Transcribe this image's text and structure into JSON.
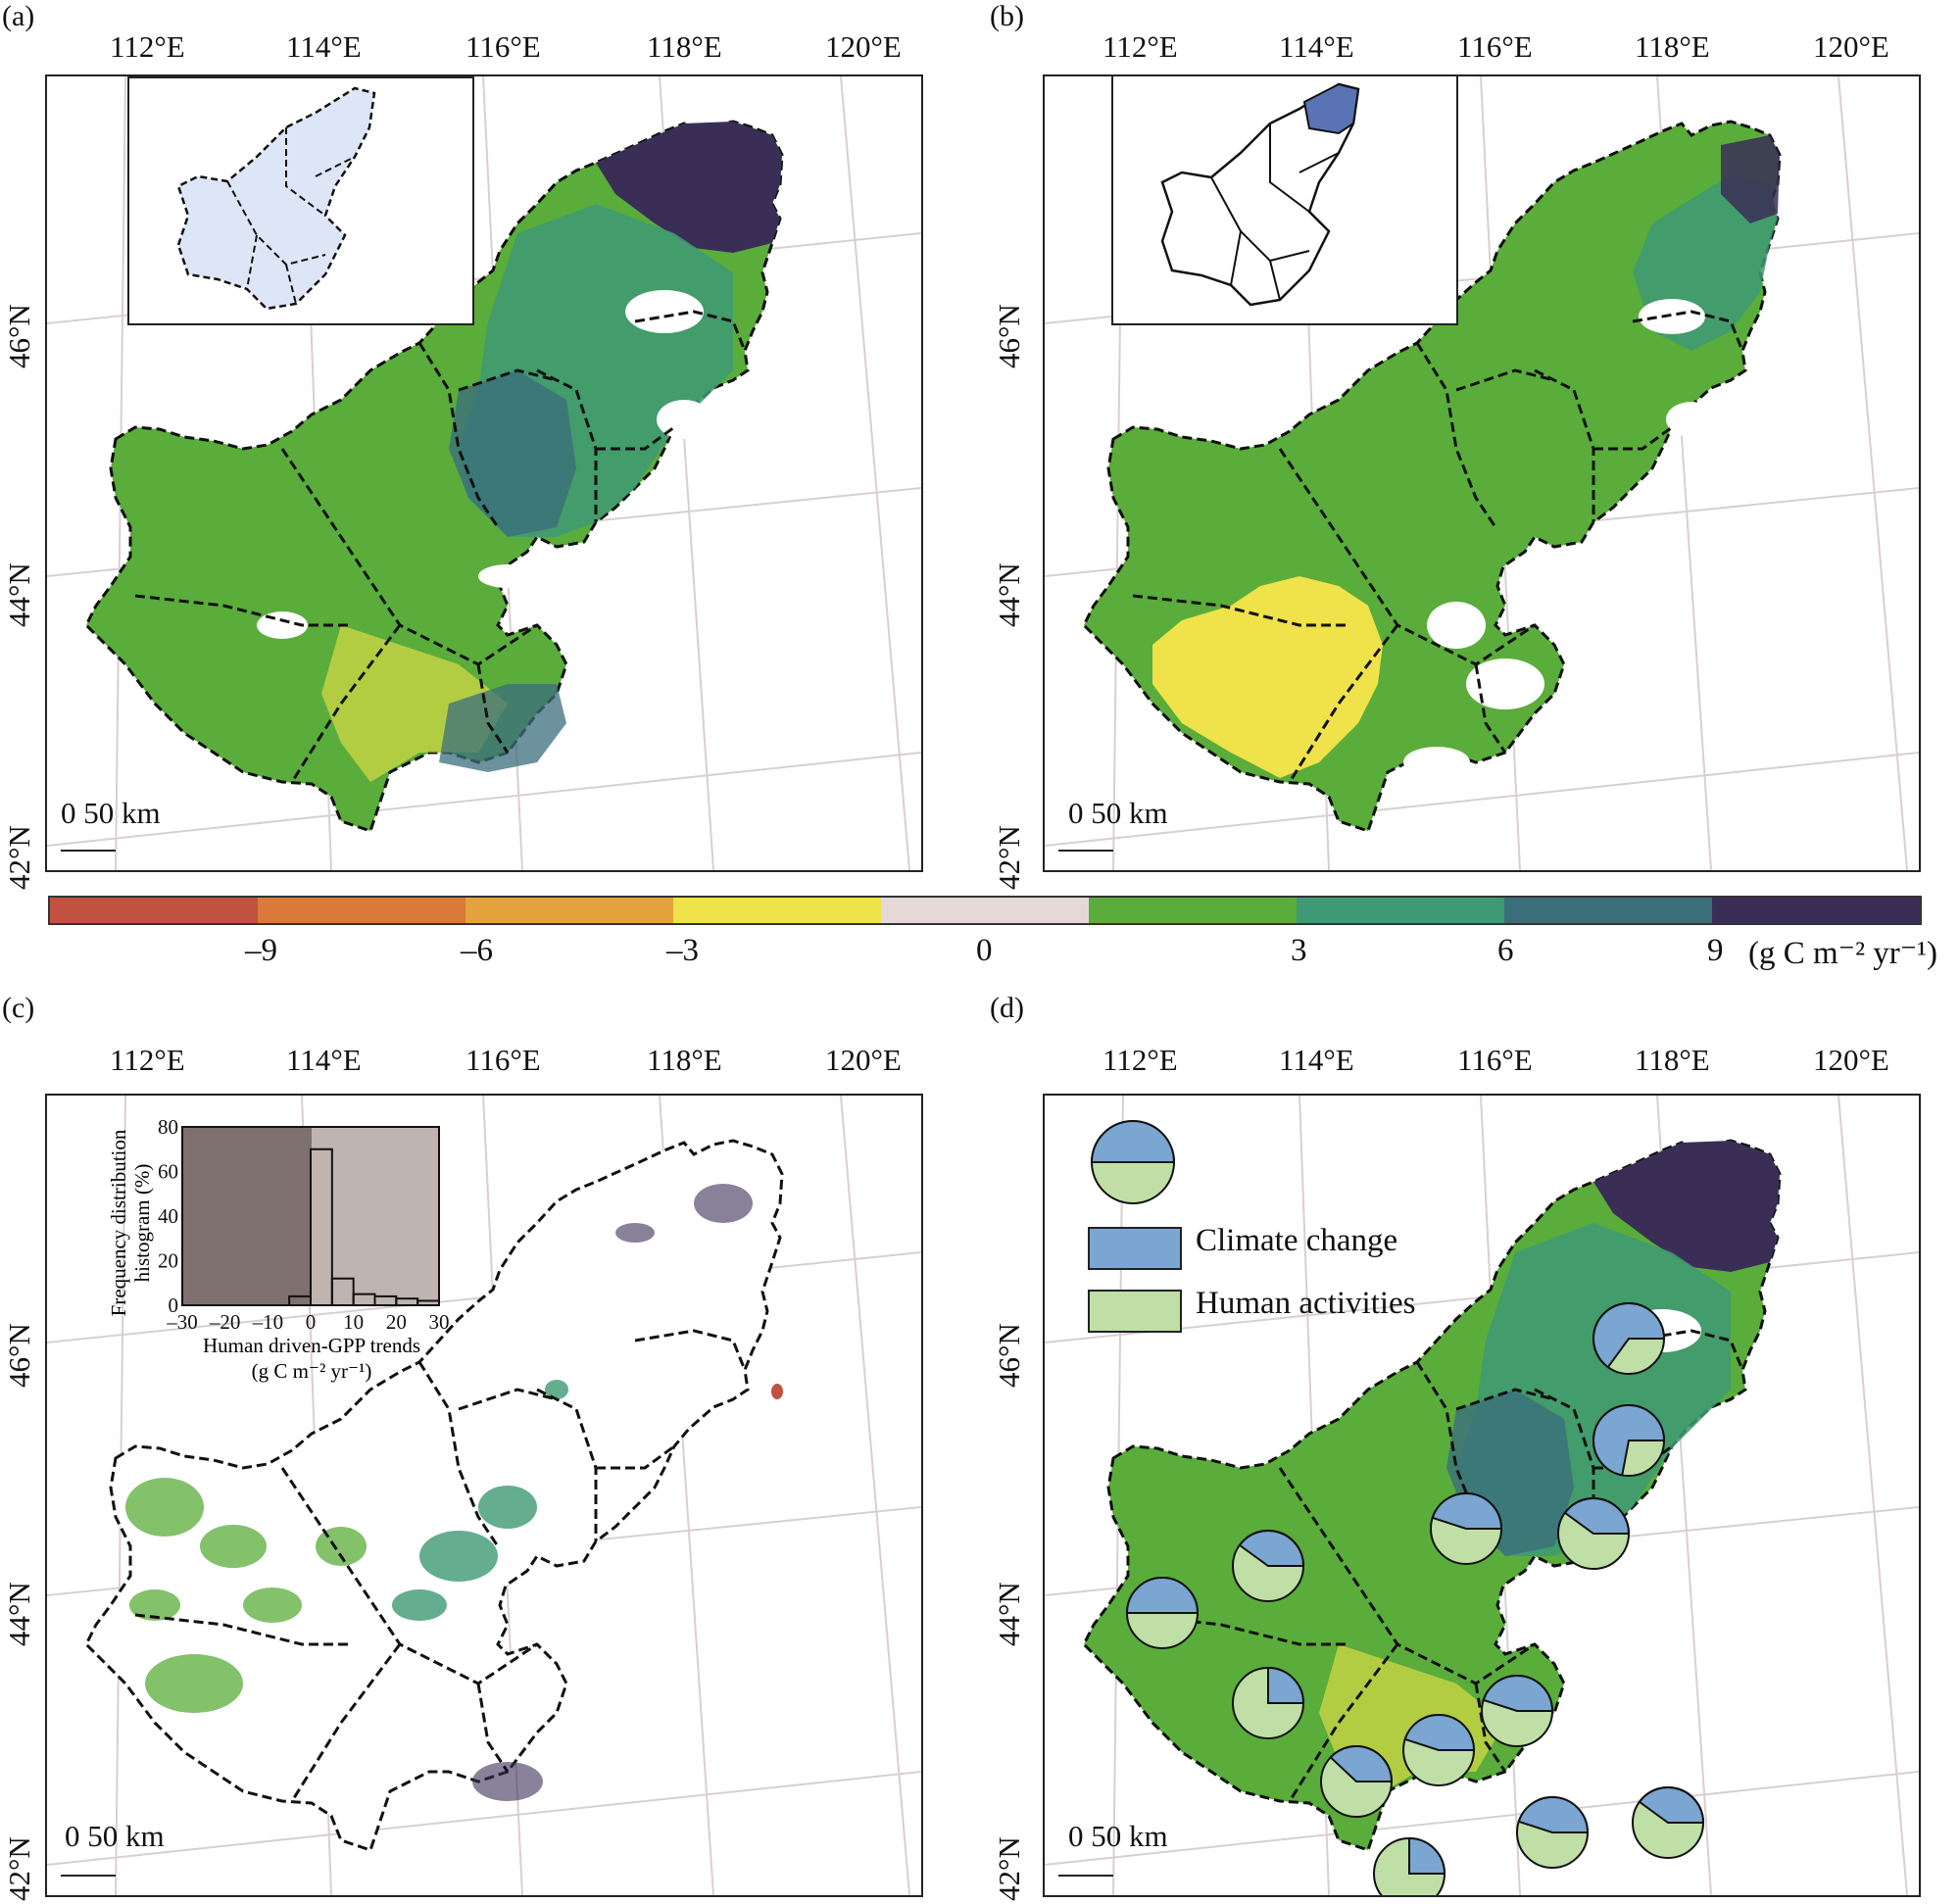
{
  "panels": [
    {
      "letter": "(a)",
      "lons": [
        "112°E",
        "114°E",
        "116°E",
        "118°E",
        "120°E"
      ],
      "lats": [
        "46°N",
        "44°N",
        "42°N"
      ],
      "scale": "0   50 km"
    },
    {
      "letter": "(b)",
      "lons": [
        "112°E",
        "114°E",
        "116°E",
        "118°E",
        "120°E"
      ],
      "lats": [
        "46°N",
        "44°N",
        "42°N"
      ],
      "scale": "0   50 km"
    },
    {
      "letter": "(c)",
      "lons": [
        "112°E",
        "114°E",
        "116°E",
        "118°E",
        "120°E"
      ],
      "lats": [
        "46°N",
        "44°N",
        "42°N"
      ],
      "scale": "0   50 km"
    },
    {
      "letter": "(d)",
      "lons": [
        "112°E",
        "114°E",
        "116°E",
        "118°E",
        "120°E"
      ],
      "lats": [
        "46°N",
        "44°N",
        "42°N"
      ],
      "scale": "0   50 km"
    }
  ],
  "legend": {
    "colors": [
      "#c0523f",
      "#d9793a",
      "#e5a33d",
      "#efe24a",
      "#e4d9d6",
      "#5aad3a",
      "#3e9974",
      "#3b6f7c",
      "#3a2e56"
    ],
    "ticks": [
      "–9",
      "–6",
      "–3",
      "0",
      "3",
      "6",
      "9"
    ],
    "unit": "(g C m⁻² yr⁻¹)"
  },
  "histogram": {
    "yaxis_label": "Frequency distribution histogram (%)",
    "yaxis_line1": "Frequency distribution",
    "yaxis_line2": "histogram (%)",
    "xaxis_line1": "Human driven-GPP trends",
    "xaxis_line2": "(g C m⁻² yr⁻¹)",
    "y_ticks": [
      "80",
      "60",
      "40",
      "20",
      "0"
    ],
    "x_ticks": [
      "–30",
      "–20",
      "–10",
      "0",
      "10",
      "20",
      "30"
    ]
  },
  "chart_data": {
    "type": "bar",
    "categories": [
      "-30",
      "-25",
      "-20",
      "-15",
      "-10",
      "-5",
      "0",
      "5",
      "10",
      "15",
      "20",
      "25"
    ],
    "values": [
      0,
      0,
      0,
      0,
      0,
      4,
      70,
      12,
      5,
      4,
      3,
      2
    ],
    "xlabel": "Human driven-GPP trends (g C m⁻² yr⁻¹)",
    "ylabel": "Frequency distribution histogram (%)",
    "xlim": [
      -30,
      30
    ],
    "ylim": [
      0,
      80
    ]
  },
  "pie_legend": {
    "climate_label": "Climate change",
    "human_label": "Human activities",
    "climate_color": "#7aa6d1",
    "human_color": "#bfdfa6"
  },
  "pies": [
    {
      "climate_share": 0.65
    },
    {
      "climate_share": 0.72
    },
    {
      "climate_share": 0.45
    },
    {
      "climate_share": 0.4
    },
    {
      "climate_share": 0.4
    },
    {
      "climate_share": 0.5
    },
    {
      "climate_share": 0.25
    },
    {
      "climate_share": 0.45
    },
    {
      "climate_share": 0.45
    },
    {
      "climate_share": 0.38
    },
    {
      "climate_share": 0.45
    },
    {
      "climate_share": 0.25
    },
    {
      "climate_share": 0.4
    }
  ]
}
